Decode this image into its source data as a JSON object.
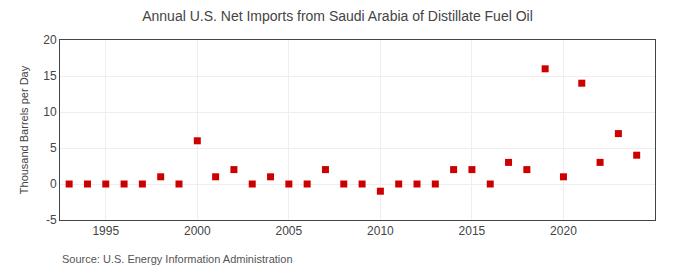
{
  "chart_data": {
    "type": "scatter",
    "title": "Annual U.S. Net Imports from Saudi Arabia of Distillate Fuel Oil",
    "ylabel": "Thousand Barrels per Day",
    "annotations": [
      "Source: U.S. Energy Information Administration"
    ],
    "x": [
      1993,
      1994,
      1995,
      1996,
      1997,
      1998,
      1999,
      2000,
      2001,
      2002,
      2003,
      2004,
      2005,
      2006,
      2007,
      2008,
      2009,
      2010,
      2011,
      2012,
      2013,
      2014,
      2015,
      2016,
      2017,
      2018,
      2019,
      2020,
      2021,
      2022,
      2023,
      2024
    ],
    "values": [
      0,
      0,
      0,
      0,
      0,
      1,
      0,
      6,
      1,
      2,
      0,
      1,
      0,
      0,
      2,
      0,
      0,
      -1,
      0,
      0,
      0,
      2,
      2,
      0,
      3,
      2,
      16,
      1,
      14,
      3,
      7,
      4
    ],
    "color": "#cc0000",
    "marker": "square",
    "xlim": [
      1992.5,
      2025
    ],
    "ylim": [
      -5,
      20
    ],
    "xticks": [
      1995,
      2000,
      2005,
      2010,
      2015,
      2020
    ],
    "yticks": [
      -5,
      0,
      5,
      10,
      15,
      20
    ],
    "grid": true
  }
}
